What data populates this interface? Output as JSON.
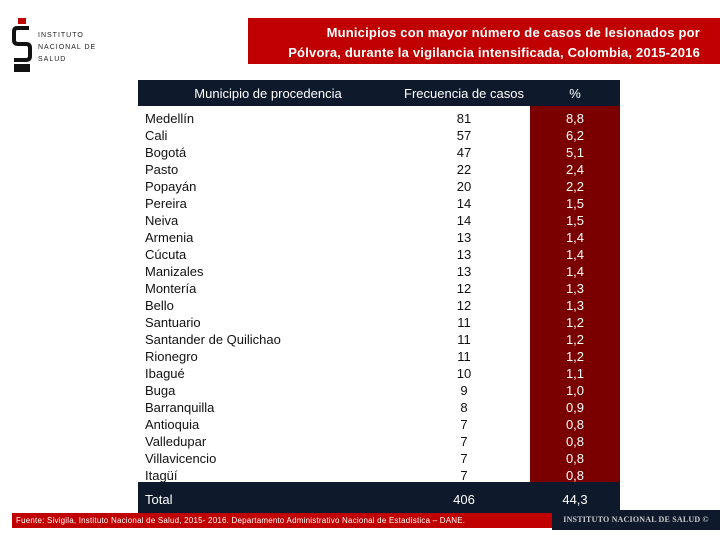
{
  "logo": {
    "lines": [
      "Instituto",
      "Nacional de",
      "Salud"
    ]
  },
  "title": {
    "line1": "Municipios con mayor número de casos de lesionados por",
    "line2": "Pólvora,  durante la vigilancia intensificada, Colombia, 2015-2016"
  },
  "table": {
    "headers": [
      "Municipio de procedencia",
      "Frecuencia de casos",
      "%"
    ],
    "rows": [
      [
        "Medellín",
        "81",
        "8,8"
      ],
      [
        "Cali",
        "57",
        "6,2"
      ],
      [
        "Bogotá",
        "47",
        "5,1"
      ],
      [
        "Pasto",
        "22",
        "2,4"
      ],
      [
        "Popayán",
        "20",
        "2,2"
      ],
      [
        "Pereira",
        "14",
        "1,5"
      ],
      [
        "Neiva",
        "14",
        "1,5"
      ],
      [
        "Armenia",
        "13",
        "1,4"
      ],
      [
        "Cúcuta",
        "13",
        "1,4"
      ],
      [
        "Manizales",
        "13",
        "1,4"
      ],
      [
        "Montería",
        "12",
        "1,3"
      ],
      [
        "Bello",
        "12",
        "1,3"
      ],
      [
        "Santuario",
        "11",
        "1,2"
      ],
      [
        "Santander de Quilichao",
        "11",
        "1,2"
      ],
      [
        "Rionegro",
        "11",
        "1,2"
      ],
      [
        "Ibagué",
        "10",
        "1,1"
      ],
      [
        "Buga",
        "9",
        "1,0"
      ],
      [
        "Barranquilla",
        "8",
        "0,9"
      ],
      [
        "Antioquia",
        "7",
        "0,8"
      ],
      [
        "Valledupar",
        "7",
        "0,8"
      ],
      [
        "Villavicencio",
        "7",
        "0,8"
      ],
      [
        "Itagüí",
        "7",
        "0,8"
      ]
    ],
    "total": [
      "Total",
      "406",
      "44,3"
    ]
  },
  "footer": {
    "source": "Fuente: Sivigila, Instituto Nacional de Salud, 2015- 2016. Departamento Administrativo Nacional de Estadística – DANE.",
    "institute": "INSTITUTO NACIONAL DE SALUD ©"
  },
  "colors": {
    "brand_red": "#c00000",
    "dark_navy": "#0e1a2b",
    "percent_column": "#7a0000"
  }
}
